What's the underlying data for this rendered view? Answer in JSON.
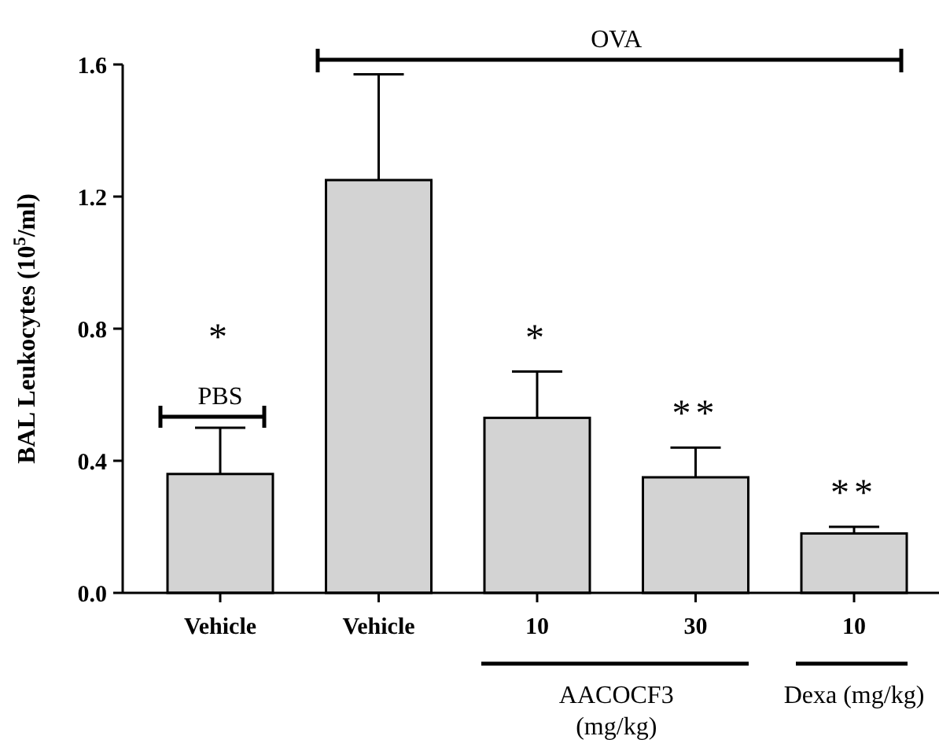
{
  "chart_data": {
    "type": "bar",
    "ylabel": "BAL Leukocytes (10$^{5}$/ml)",
    "categories": [
      "Vehicle",
      "Vehicle",
      "10",
      "30",
      "10"
    ],
    "values": [
      0.36,
      1.25,
      0.53,
      0.35,
      0.18
    ],
    "errors": [
      [
        0.36,
        0.5
      ],
      [
        1.25,
        1.57
      ],
      [
        0.53,
        0.67
      ],
      [
        0.35,
        0.44
      ],
      [
        0.18,
        0.2
      ]
    ],
    "color": "#d3d3d3",
    "ylim": [
      0,
      1.6
    ],
    "yticks": [
      {
        "value": 0,
        "label": "0.0"
      },
      0.4,
      0.8,
      1.2,
      1.6
    ],
    "annotations": [
      "OVA",
      "PBS",
      "*",
      "*",
      "**",
      "**",
      "AACOCF3 (mg/kg)",
      "Dexa (mg/kg)"
    ]
  }
}
